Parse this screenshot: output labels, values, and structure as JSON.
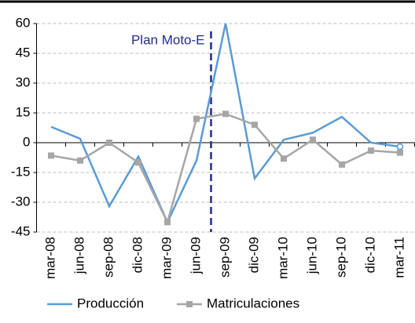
{
  "chart_data": {
    "type": "line",
    "categories": [
      "mar-08",
      "jun-08",
      "sep-08",
      "dic-08",
      "mar-09",
      "jun-09",
      "sep-09",
      "dic-09",
      "mar-10",
      "jun-10",
      "sep-10",
      "dic-10",
      "mar-11"
    ],
    "series": [
      {
        "name": "Producción",
        "color": "#5b9bd5",
        "values": [
          8,
          2,
          -32,
          -7,
          -40,
          -9,
          60,
          -18,
          1.5,
          5,
          13,
          0,
          -2
        ]
      },
      {
        "name": "Matriculaciones",
        "color": "#a6a6a6",
        "values": [
          -6.5,
          -9,
          0,
          -10,
          -40,
          12,
          14.5,
          9,
          -8,
          1.5,
          -11,
          -4,
          -5
        ]
      }
    ],
    "ylim": [
      -45,
      60
    ],
    "yticks": [
      -45,
      -30,
      -15,
      0,
      15,
      30,
      45,
      60
    ],
    "grid": true,
    "annotation": "Plan Moto-E"
  }
}
